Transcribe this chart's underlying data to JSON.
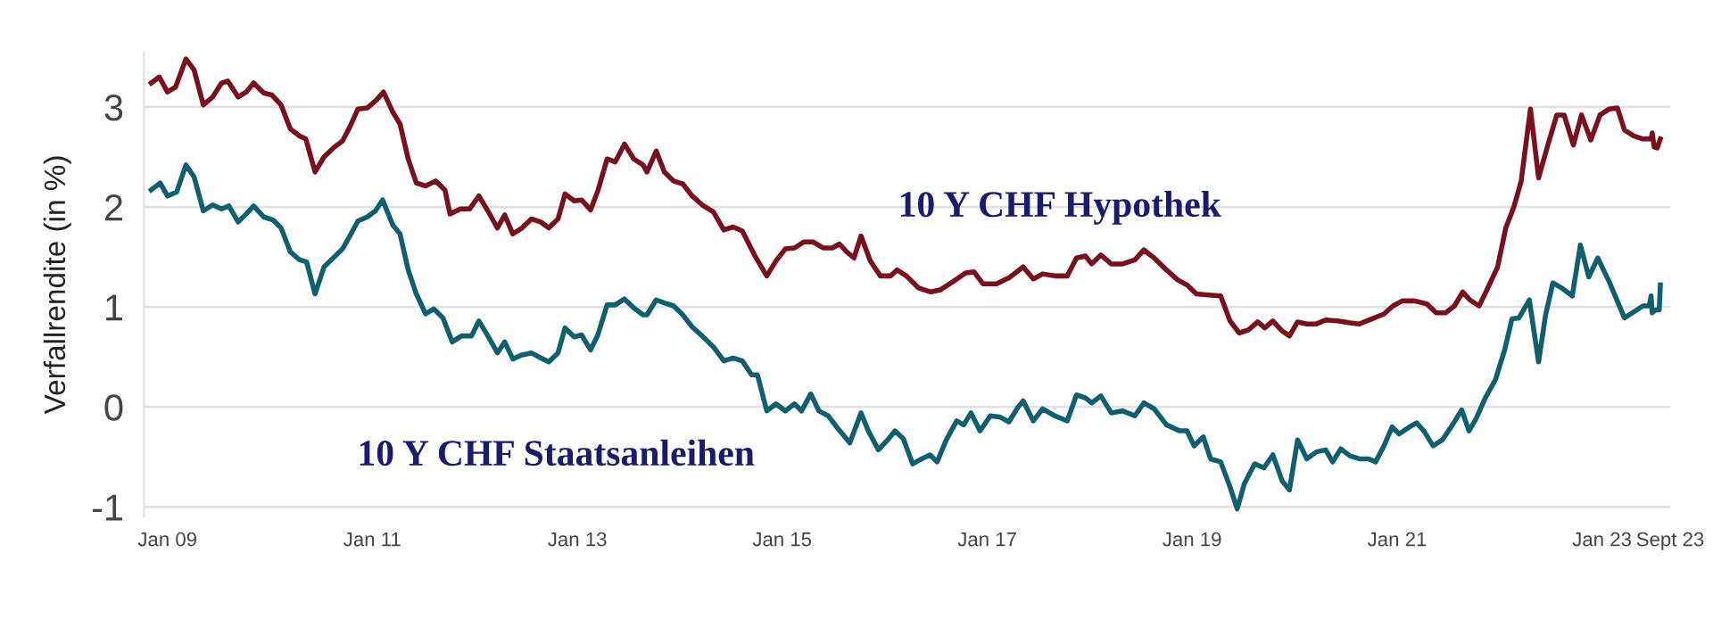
{
  "chart_data": {
    "type": "line",
    "ylabel": "Verfallrendite (in %)",
    "xlim": [
      "2008-10-09",
      "2023-09-01"
    ],
    "xticks": [
      {
        "value": "2009-01-01",
        "label": "Jan 09"
      },
      {
        "value": "2011-01-01",
        "label": "Jan 11"
      },
      {
        "value": "2013-01-01",
        "label": "Jan 13"
      },
      {
        "value": "2015-01-01",
        "label": "Jan 15"
      },
      {
        "value": "2017-01-01",
        "label": "Jan 17"
      },
      {
        "value": "2019-01-01",
        "label": "Jan 19"
      },
      {
        "value": "2021-01-01",
        "label": "Jan 21"
      },
      {
        "value": "2023-01-01",
        "label": "Jan 23"
      },
      {
        "value": "2023-09-01",
        "label": "Sept 23"
      }
    ],
    "ylim": [
      -1.1,
      3.55
    ],
    "yticks": [
      -1,
      0,
      1,
      2,
      3
    ],
    "grid": "y",
    "legend": false,
    "marker": "none",
    "line_style": "solid",
    "series": [
      {
        "name": "10 Y CHF Hypothek",
        "color": "#7a0f1e",
        "x": [
          "2008-11-04",
          "2008-12-03",
          "2009-01-01",
          "2009-01-30",
          "2009-03-08",
          "2009-04-06",
          "2009-05-09",
          "2009-06-11",
          "2009-07-13",
          "2009-08-04",
          "2009-09-10",
          "2009-10-09",
          "2009-11-04",
          "2009-12-10",
          "2010-01-08",
          "2010-02-10",
          "2010-03-15",
          "2010-04-17",
          "2010-05-09",
          "2010-06-11",
          "2010-07-13",
          "2010-08-15",
          "2010-09-17",
          "2010-10-13",
          "2010-11-11",
          "2010-12-14",
          "2011-01-16",
          "2011-02-10",
          "2011-03-15",
          "2011-04-10",
          "2011-05-09",
          "2011-06-07",
          "2011-07-10",
          "2011-08-15",
          "2011-09-17",
          "2011-10-05",
          "2011-11-11",
          "2011-12-14",
          "2012-01-16",
          "2012-02-17",
          "2012-03-22",
          "2012-04-17",
          "2012-05-16",
          "2012-06-18",
          "2012-07-21",
          "2012-08-23",
          "2012-09-21",
          "2012-10-24",
          "2012-11-18",
          "2012-12-21",
          "2013-01-16",
          "2013-02-17",
          "2013-03-15",
          "2013-04-17",
          "2013-05-16",
          "2013-06-18",
          "2013-07-21",
          "2013-08-23",
          "2013-09-06",
          "2013-10-09",
          "2013-11-07",
          "2013-12-10",
          "2014-01-12",
          "2014-02-14",
          "2014-03-22",
          "2014-05-01",
          "2014-06-07",
          "2014-07-10",
          "2014-08-12",
          "2014-09-24",
          "2014-11-07",
          "2014-12-10",
          "2015-01-12",
          "2015-02-14",
          "2015-03-19",
          "2015-04-21",
          "2015-05-27",
          "2015-06-29",
          "2015-07-24",
          "2015-08-19",
          "2015-09-14",
          "2015-10-09",
          "2015-11-11",
          "2015-12-17",
          "2016-01-23",
          "2016-02-14",
          "2016-03-19",
          "2016-05-01",
          "2016-06-14",
          "2016-07-17",
          "2016-08-30",
          "2016-10-16",
          "2016-11-15",
          "2016-12-17",
          "2017-02-03",
          "2017-03-19",
          "2017-05-09",
          "2017-06-14",
          "2017-07-17",
          "2017-08-30",
          "2017-10-13",
          "2017-11-15",
          "2017-12-17",
          "2018-01-08",
          "2018-02-10",
          "2018-03-19",
          "2018-04-28",
          "2018-06-11",
          "2018-07-13",
          "2018-08-19",
          "2018-10-02",
          "2018-11-11",
          "2018-12-14",
          "2019-01-16",
          "2019-02-28",
          "2019-04-13",
          "2019-05-16",
          "2019-06-18",
          "2019-07-21",
          "2019-08-23",
          "2019-09-17",
          "2019-10-16",
          "2019-11-18",
          "2019-12-14",
          "2020-01-12",
          "2020-02-14",
          "2020-03-19",
          "2020-04-21",
          "2020-06-03",
          "2020-07-17",
          "2020-08-19",
          "2020-10-02",
          "2020-11-15",
          "2020-12-17",
          "2021-01-19",
          "2021-03-04",
          "2021-04-17",
          "2021-05-20",
          "2021-06-22",
          "2021-07-24",
          "2021-08-23",
          "2021-09-17",
          "2021-10-20",
          "2021-11-15",
          "2021-12-25",
          "2022-01-23",
          "2022-02-21",
          "2022-03-19",
          "2022-04-21",
          "2022-05-20",
          "2022-06-22",
          "2022-07-24",
          "2022-08-19",
          "2022-09-21",
          "2022-10-20",
          "2022-11-22",
          "2022-12-25",
          "2023-01-27",
          "2023-02-25",
          "2023-03-22",
          "2023-04-24",
          "2023-05-27",
          "2023-06-25",
          "2023-06-29",
          "2023-07-06",
          "2023-07-17",
          "2023-07-28"
        ],
        "values": [
          3.24,
          3.3,
          3.15,
          3.2,
          3.48,
          3.37,
          3.02,
          3.1,
          3.24,
          3.26,
          3.1,
          3.15,
          3.24,
          3.14,
          3.12,
          3.02,
          2.78,
          2.71,
          2.68,
          2.35,
          2.5,
          2.59,
          2.66,
          2.8,
          2.98,
          2.99,
          3.07,
          3.15,
          2.95,
          2.83,
          2.48,
          2.24,
          2.21,
          2.26,
          2.17,
          1.93,
          1.98,
          1.98,
          2.11,
          1.96,
          1.79,
          1.92,
          1.73,
          1.79,
          1.88,
          1.85,
          1.79,
          1.88,
          2.13,
          2.06,
          2.07,
          1.97,
          2.16,
          2.48,
          2.45,
          2.63,
          2.48,
          2.42,
          2.35,
          2.56,
          2.35,
          2.26,
          2.23,
          2.11,
          2.02,
          1.95,
          1.77,
          1.8,
          1.76,
          1.52,
          1.31,
          1.46,
          1.58,
          1.59,
          1.65,
          1.65,
          1.59,
          1.59,
          1.63,
          1.55,
          1.49,
          1.71,
          1.46,
          1.31,
          1.31,
          1.37,
          1.31,
          1.19,
          1.15,
          1.17,
          1.25,
          1.34,
          1.35,
          1.23,
          1.23,
          1.29,
          1.4,
          1.28,
          1.33,
          1.31,
          1.31,
          1.49,
          1.51,
          1.43,
          1.52,
          1.43,
          1.43,
          1.47,
          1.57,
          1.49,
          1.37,
          1.27,
          1.22,
          1.13,
          1.12,
          1.11,
          0.86,
          0.74,
          0.77,
          0.85,
          0.79,
          0.86,
          0.76,
          0.71,
          0.85,
          0.83,
          0.83,
          0.87,
          0.86,
          0.84,
          0.83,
          0.88,
          0.93,
          1.01,
          1.06,
          1.06,
          1.03,
          0.94,
          0.94,
          1.01,
          1.15,
          1.07,
          1.01,
          1.16,
          1.4,
          1.79,
          2.0,
          2.26,
          2.98,
          2.29,
          2.62,
          2.92,
          2.92,
          2.62,
          2.92,
          2.67,
          2.92,
          2.98,
          2.99,
          2.77,
          2.71,
          2.68,
          2.68,
          2.74,
          2.6,
          2.59,
          2.68
        ]
      },
      {
        "name": "10 Y CHF Staatsanleihen",
        "color": "#0f5f6e",
        "x": [
          "2008-11-04",
          "2008-12-06",
          "2009-01-01",
          "2009-02-03",
          "2009-03-08",
          "2009-04-06",
          "2009-05-09",
          "2009-06-11",
          "2009-07-13",
          "2009-08-08",
          "2009-09-10",
          "2009-10-09",
          "2009-11-04",
          "2009-12-10",
          "2010-01-12",
          "2010-02-10",
          "2010-03-15",
          "2010-04-17",
          "2010-05-12",
          "2010-06-11",
          "2010-07-13",
          "2010-08-15",
          "2010-09-17",
          "2010-10-13",
          "2010-11-11",
          "2010-12-14",
          "2011-01-12",
          "2011-02-07",
          "2011-03-15",
          "2011-04-10",
          "2011-05-09",
          "2011-06-07",
          "2011-07-10",
          "2011-08-08",
          "2011-09-10",
          "2011-10-13",
          "2011-11-15",
          "2011-12-21",
          "2012-01-16",
          "2012-02-17",
          "2012-03-22",
          "2012-04-17",
          "2012-05-16",
          "2012-06-18",
          "2012-07-21",
          "2012-08-23",
          "2012-09-21",
          "2012-10-24",
          "2012-11-18",
          "2012-12-21",
          "2013-01-16",
          "2013-02-17",
          "2013-03-15",
          "2013-04-17",
          "2013-05-16",
          "2013-06-18",
          "2013-07-21",
          "2013-08-23",
          "2013-09-06",
          "2013-10-09",
          "2013-11-07",
          "2013-12-10",
          "2014-01-12",
          "2014-02-14",
          "2014-03-22",
          "2014-05-01",
          "2014-06-07",
          "2014-07-10",
          "2014-08-12",
          "2014-09-14",
          "2014-10-05",
          "2014-11-07",
          "2014-12-10",
          "2015-01-12",
          "2015-02-14",
          "2015-03-11",
          "2015-04-13",
          "2015-05-12",
          "2015-06-14",
          "2015-07-17",
          "2015-08-30",
          "2015-10-09",
          "2015-11-04",
          "2015-12-10",
          "2016-01-12",
          "2016-02-07",
          "2016-03-08",
          "2016-04-10",
          "2016-05-12",
          "2016-06-11",
          "2016-07-06",
          "2016-08-08",
          "2016-09-14",
          "2016-10-09",
          "2016-11-04",
          "2016-12-06",
          "2017-01-12",
          "2017-02-14",
          "2017-03-19",
          "2017-04-21",
          "2017-05-09",
          "2017-06-14",
          "2017-07-17",
          "2017-08-30",
          "2017-10-13",
          "2017-11-15",
          "2017-12-17",
          "2018-01-08",
          "2018-02-10",
          "2018-03-19",
          "2018-04-28",
          "2018-06-11",
          "2018-07-13",
          "2018-08-19",
          "2018-10-02",
          "2018-11-18",
          "2018-12-14",
          "2019-01-08",
          "2019-02-10",
          "2019-03-08",
          "2019-04-13",
          "2019-05-16",
          "2019-06-11",
          "2019-07-06",
          "2019-08-12",
          "2019-09-14",
          "2019-10-16",
          "2019-11-18",
          "2019-12-14",
          "2020-01-12",
          "2020-02-14",
          "2020-03-19",
          "2020-04-21",
          "2020-05-16",
          "2020-06-14",
          "2020-07-17",
          "2020-08-19",
          "2020-09-21",
          "2020-10-16",
          "2020-11-15",
          "2020-12-14",
          "2021-01-08",
          "2021-02-14",
          "2021-03-11",
          "2021-04-06",
          "2021-05-09",
          "2021-06-11",
          "2021-07-17",
          "2021-08-19",
          "2021-09-14",
          "2021-10-09",
          "2021-11-11",
          "2021-12-17",
          "2022-01-19",
          "2022-02-14",
          "2022-03-11",
          "2022-04-17",
          "2022-05-20",
          "2022-06-14",
          "2022-07-10",
          "2022-08-15",
          "2022-09-17",
          "2022-10-16",
          "2022-11-15",
          "2022-12-17",
          "2023-01-27",
          "2023-03-22",
          "2023-04-24",
          "2023-05-27",
          "2023-06-18",
          "2023-06-25",
          "2023-06-29",
          "2023-07-10",
          "2023-07-24",
          "2023-07-28"
        ],
        "values": [
          2.17,
          2.24,
          2.11,
          2.15,
          2.42,
          2.3,
          1.96,
          2.02,
          1.98,
          2.01,
          1.85,
          1.93,
          2.01,
          1.9,
          1.87,
          1.79,
          1.55,
          1.47,
          1.45,
          1.13,
          1.4,
          1.49,
          1.58,
          1.71,
          1.86,
          1.9,
          1.96,
          2.07,
          1.82,
          1.73,
          1.37,
          1.13,
          0.93,
          0.98,
          0.89,
          0.65,
          0.71,
          0.71,
          0.86,
          0.71,
          0.54,
          0.65,
          0.48,
          0.52,
          0.54,
          0.49,
          0.45,
          0.54,
          0.79,
          0.7,
          0.72,
          0.57,
          0.72,
          1.02,
          1.02,
          1.08,
          0.99,
          0.92,
          0.92,
          1.07,
          1.04,
          1.01,
          0.92,
          0.8,
          0.71,
          0.6,
          0.46,
          0.49,
          0.46,
          0.32,
          0.32,
          -0.04,
          0.03,
          -0.04,
          0.03,
          -0.04,
          0.13,
          -0.04,
          -0.09,
          -0.21,
          -0.36,
          -0.06,
          -0.24,
          -0.43,
          -0.33,
          -0.24,
          -0.32,
          -0.57,
          -0.52,
          -0.48,
          -0.55,
          -0.33,
          -0.14,
          -0.18,
          -0.06,
          -0.24,
          -0.09,
          -0.1,
          -0.15,
          0.0,
          0.06,
          -0.14,
          -0.02,
          -0.09,
          -0.14,
          0.12,
          0.09,
          0.04,
          0.11,
          -0.06,
          -0.04,
          -0.09,
          0.04,
          -0.02,
          -0.18,
          -0.24,
          -0.24,
          -0.39,
          -0.3,
          -0.52,
          -0.55,
          -0.8,
          -1.02,
          -0.77,
          -0.57,
          -0.61,
          -0.48,
          -0.74,
          -0.83,
          -0.33,
          -0.52,
          -0.45,
          -0.43,
          -0.55,
          -0.42,
          -0.49,
          -0.52,
          -0.52,
          -0.55,
          -0.39,
          -0.2,
          -0.27,
          -0.2,
          -0.16,
          -0.24,
          -0.39,
          -0.33,
          -0.18,
          -0.03,
          -0.24,
          -0.12,
          0.09,
          0.27,
          0.57,
          0.88,
          0.89,
          1.07,
          0.45,
          0.92,
          1.24,
          1.18,
          1.11,
          1.62,
          1.3,
          1.49,
          1.25,
          0.89,
          0.95,
          1.01,
          1.01,
          1.11,
          0.94,
          0.97,
          0.97,
          1.22
        ]
      }
    ]
  }
}
